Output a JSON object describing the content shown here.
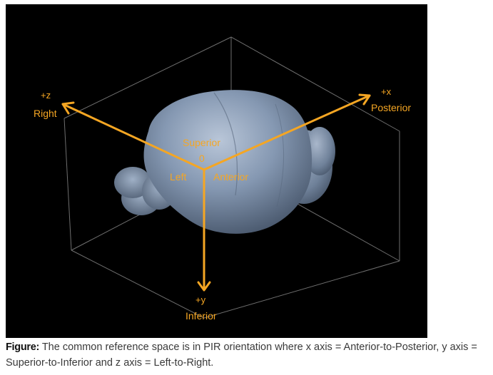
{
  "figure": {
    "colors": {
      "background": "#000000",
      "axis": "#f5a623",
      "bounding_box": "#8a8a8a",
      "brain": "#7f93ad"
    },
    "labels": {
      "z_sign": "+z",
      "z_name": "Right",
      "x_sign": "+x",
      "x_name": "Posterior",
      "y_sign": "+y",
      "y_name": "Inferior",
      "superior": "Superior",
      "origin": "0",
      "left": "Left",
      "anterior": "Anterior"
    }
  },
  "caption": {
    "lead": "Figure:",
    "text": " The common reference space is in PIR orientation where x axis = Anterior-to-Posterior, y axis = Superior-to-Inferior and z axis = Left-to-Right."
  }
}
